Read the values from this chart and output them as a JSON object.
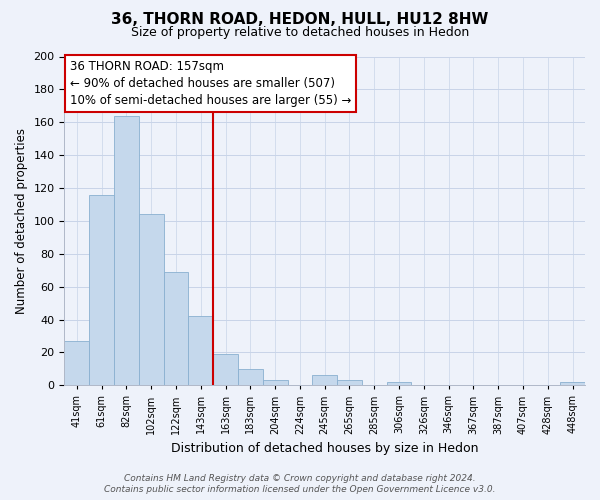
{
  "title": "36, THORN ROAD, HEDON, HULL, HU12 8HW",
  "subtitle": "Size of property relative to detached houses in Hedon",
  "xlabel": "Distribution of detached houses by size in Hedon",
  "ylabel": "Number of detached properties",
  "bar_labels": [
    "41sqm",
    "61sqm",
    "82sqm",
    "102sqm",
    "122sqm",
    "143sqm",
    "163sqm",
    "183sqm",
    "204sqm",
    "224sqm",
    "245sqm",
    "265sqm",
    "285sqm",
    "306sqm",
    "326sqm",
    "346sqm",
    "367sqm",
    "387sqm",
    "407sqm",
    "428sqm",
    "448sqm"
  ],
  "bar_values": [
    27,
    116,
    164,
    104,
    69,
    42,
    19,
    10,
    3,
    0,
    6,
    3,
    0,
    2,
    0,
    0,
    0,
    0,
    0,
    0,
    2
  ],
  "bar_color": "#c5d8ec",
  "bar_edge_color": "#8ab0d0",
  "ylim": [
    0,
    200
  ],
  "yticks": [
    0,
    20,
    40,
    60,
    80,
    100,
    120,
    140,
    160,
    180,
    200
  ],
  "property_label": "36 THORN ROAD: 157sqm",
  "annotation_line1": "← 90% of detached houses are smaller (507)",
  "annotation_line2": "10% of semi-detached houses are larger (55) →",
  "vline_color": "#cc0000",
  "vline_bin_index": 6,
  "annotation_box_color": "#ffffff",
  "annotation_box_edge": "#cc0000",
  "footer_line1": "Contains HM Land Registry data © Crown copyright and database right 2024.",
  "footer_line2": "Contains public sector information licensed under the Open Government Licence v3.0.",
  "background_color": "#eef2fa",
  "grid_color": "#c8d4e8",
  "title_fontsize": 11,
  "subtitle_fontsize": 9
}
